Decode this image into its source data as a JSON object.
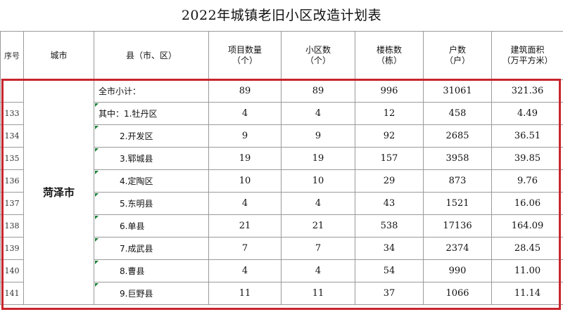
{
  "title": "2022年城镇老旧小区改造计划表",
  "headers": {
    "seq": "序号",
    "city": "城市",
    "county": "县（市、区）",
    "projects": "项目数量",
    "projects_unit": "（个）",
    "communities": "小区数",
    "communities_unit": "（个）",
    "buildings": "楼栋数",
    "buildings_unit": "（栋）",
    "households": "户数",
    "households_unit": "（户）",
    "area": "建筑面积",
    "area_unit": "（万平方米）"
  },
  "city_name": "菏泽市",
  "rows": [
    {
      "seq": "",
      "county": "全市小计：",
      "projects": "89",
      "communities": "89",
      "buildings": "996",
      "households": "31061",
      "area": "321.36"
    },
    {
      "seq": "133",
      "county": "其中：1.牡丹区",
      "projects": "4",
      "communities": "4",
      "buildings": "12",
      "households": "458",
      "area": "4.49"
    },
    {
      "seq": "134",
      "county": "2.开发区",
      "projects": "9",
      "communities": "9",
      "buildings": "92",
      "households": "2685",
      "area": "36.51"
    },
    {
      "seq": "135",
      "county": "3.郓城县",
      "projects": "19",
      "communities": "19",
      "buildings": "157",
      "households": "3958",
      "area": "39.85"
    },
    {
      "seq": "136",
      "county": "4.定陶区",
      "projects": "10",
      "communities": "10",
      "buildings": "29",
      "households": "873",
      "area": "9.76"
    },
    {
      "seq": "137",
      "county": "5.东明县",
      "projects": "4",
      "communities": "4",
      "buildings": "43",
      "households": "1521",
      "area": "16.06"
    },
    {
      "seq": "138",
      "county": "6.单县",
      "projects": "21",
      "communities": "21",
      "buildings": "538",
      "households": "17136",
      "area": "164.09"
    },
    {
      "seq": "139",
      "county": "7.成武县",
      "projects": "7",
      "communities": "7",
      "buildings": "34",
      "households": "2374",
      "area": "28.45"
    },
    {
      "seq": "140",
      "county": "8.曹县",
      "projects": "4",
      "communities": "4",
      "buildings": "54",
      "households": "990",
      "area": "11.00"
    },
    {
      "seq": "141",
      "county": "9.巨野县",
      "projects": "11",
      "communities": "11",
      "buildings": "37",
      "households": "1066",
      "area": "11.14"
    }
  ]
}
